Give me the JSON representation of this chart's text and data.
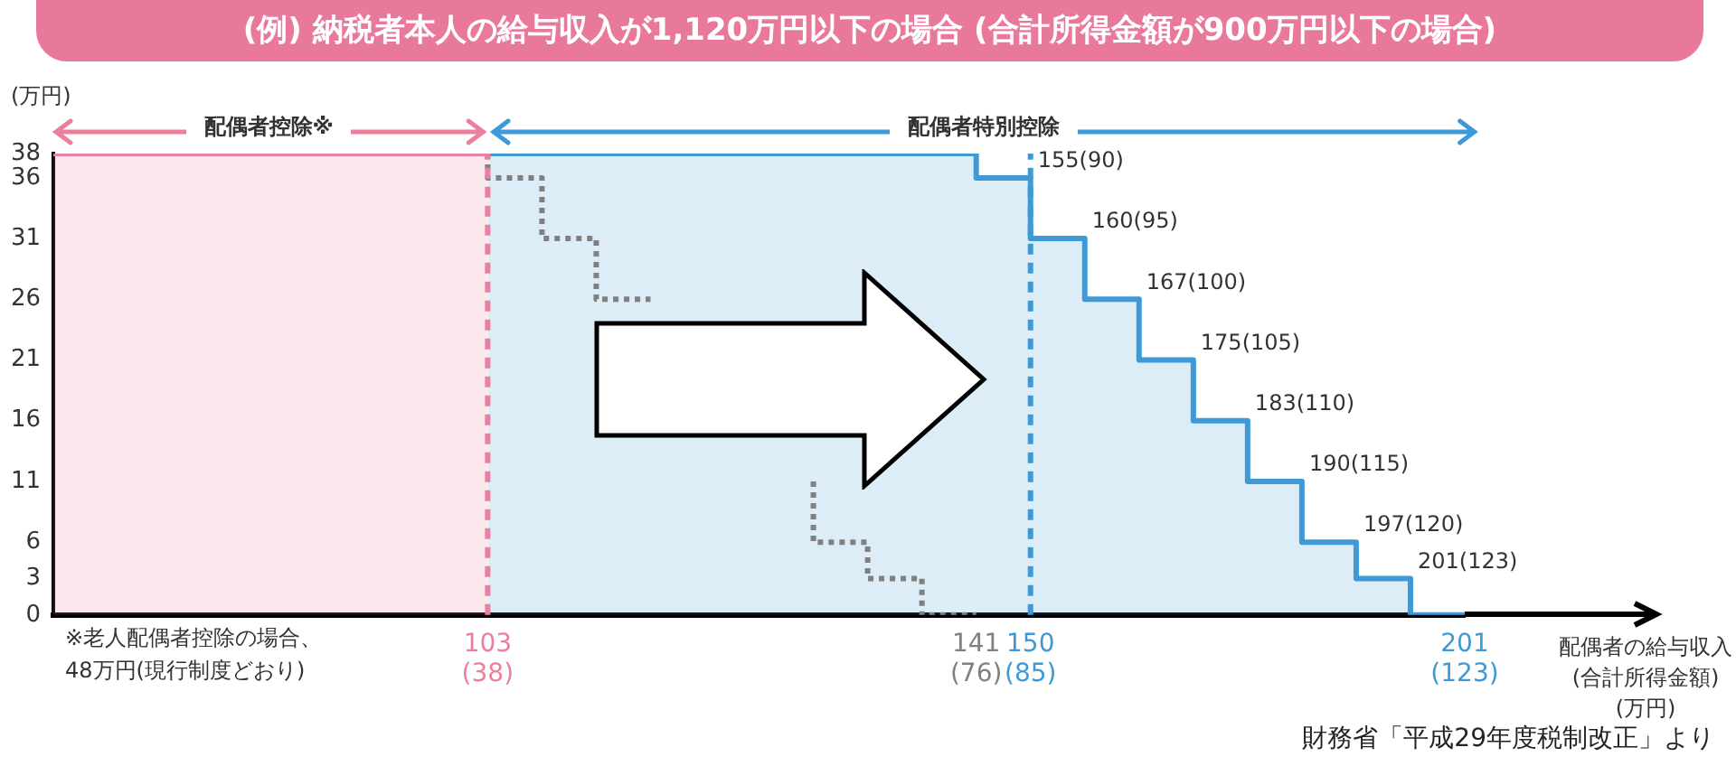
{
  "chart_data": {
    "type": "step",
    "title": "(例) 納税者本人の給与収入が1,120万円以下の場合 (合計所得金額が900万円以下の場合)",
    "ylabel": "(万円)",
    "xlabel": "配偶者の給与収入\n(合計所得金額)\n(万円)",
    "categories": [
      null,
      null,
      null,
      null,
      null,
      null,
      null,
      null,
      "103 (38)",
      null,
      null,
      null,
      null,
      null,
      null,
      null,
      null,
      "141 (76)",
      "150 (85)",
      null,
      null,
      null,
      null,
      null,
      null,
      null,
      "201 (123)"
    ],
    "series": [
      {
        "type": "area",
        "color": "#ec7f9c",
        "values": [
          38,
          38,
          38,
          38,
          38,
          38,
          38,
          38,
          38,
          null,
          null,
          null,
          null,
          null,
          null,
          null,
          null,
          null,
          null,
          null,
          null,
          null,
          null,
          null,
          null,
          null,
          null
        ]
      },
      {
        "type": "area",
        "color": "#3d9ad6",
        "values": [
          null,
          null,
          null,
          null,
          null,
          null,
          null,
          null,
          38,
          38,
          38,
          38,
          38,
          38,
          38,
          38,
          38,
          38,
          36,
          31,
          26,
          21,
          16,
          11,
          6,
          3,
          0
        ]
      },
      {
        "color": "#808080",
        "line_style": "dotted",
        "values": [
          null,
          null,
          null,
          null,
          null,
          null,
          null,
          null,
          38,
          36,
          31,
          26,
          null,
          null,
          11,
          6,
          3,
          0,
          null,
          null,
          null,
          null,
          null,
          null,
          null,
          null,
          null
        ]
      }
    ],
    "ylim": [
      0,
      38
    ],
    "yticks": [
      0,
      3,
      6,
      11,
      16,
      21,
      26,
      31,
      36,
      38
    ],
    "ref_lines": [
      {
        "axis": "x",
        "value": "103 (38)",
        "color": "#ec7f9c",
        "line_style": "dashed"
      },
      {
        "axis": "x",
        "value": "150 (85)",
        "color": "#3d9ad6",
        "line_style": "dashed"
      }
    ],
    "annotations": [
      "配偶者控除※",
      "配偶者特別控除",
      "※老人配偶者控除の場合、\n48万円(現行制度どおり)",
      "財務省「平成29年度税制改正」より",
      "155(90)",
      "160(95)",
      "167(100)",
      "175(105)",
      "183(110)",
      "190(115)",
      "197(120)",
      "201(123)"
    ],
    "grid": false,
    "legend": false
  }
}
